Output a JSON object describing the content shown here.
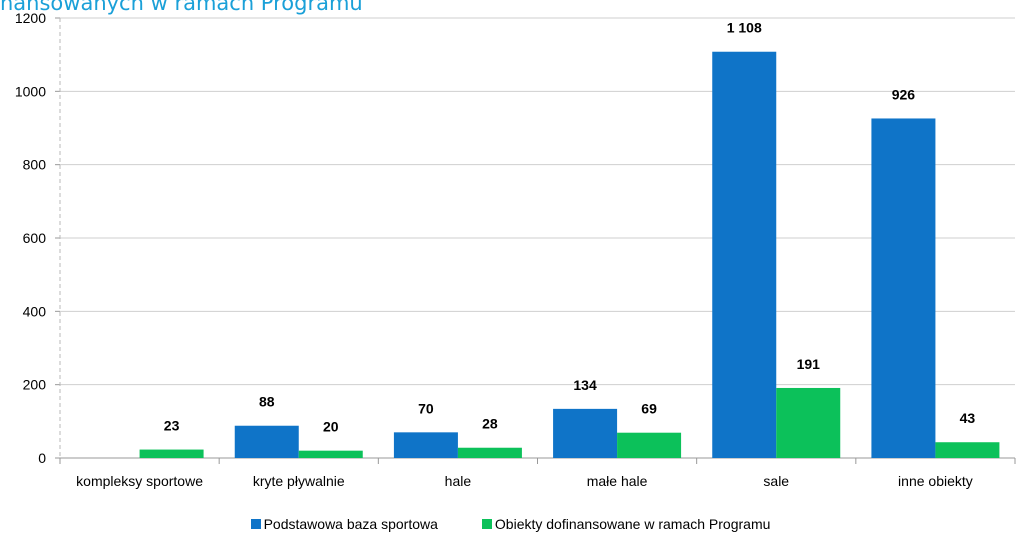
{
  "title": "nansowanych w ramach Programu",
  "chart_data": {
    "type": "bar",
    "categories": [
      "kompleksy sportowe",
      "kryte pływalnie",
      "hale",
      "małe hale",
      "sale",
      "inne obiekty"
    ],
    "series": [
      {
        "name": "Podstawowa baza sportowa",
        "color": "#0f74c8",
        "values": [
          null,
          88,
          70,
          134,
          1108,
          926
        ],
        "labels": [
          "",
          "88",
          "70",
          "134",
          "1 108",
          "926"
        ]
      },
      {
        "name": "Obiekty dofinansowane w ramach Programu",
        "color": "#0cc15a",
        "values": [
          23,
          20,
          28,
          69,
          191,
          43
        ],
        "labels": [
          "23",
          "20",
          "28",
          "69",
          "191",
          "43"
        ]
      }
    ],
    "ylim": [
      0,
      1200
    ],
    "yticks": [
      0,
      200,
      400,
      600,
      800,
      1000,
      1200
    ],
    "xlabel": "",
    "ylabel": "",
    "grid": true,
    "legend_position": "bottom"
  }
}
